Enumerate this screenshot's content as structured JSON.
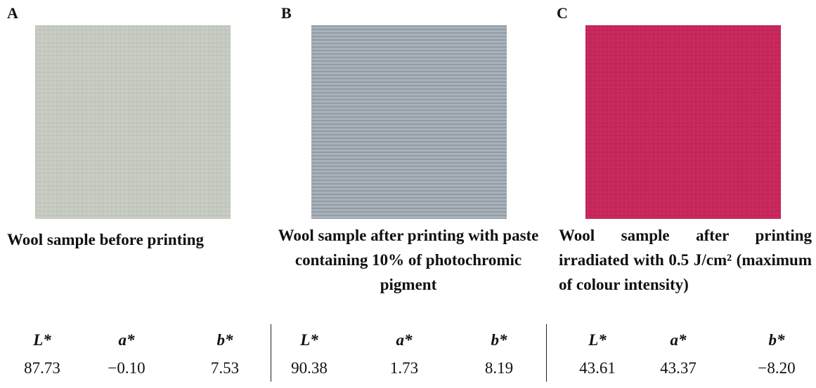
{
  "panels": [
    {
      "label": "A",
      "caption": "Wool sample before printing",
      "headers": [
        "L*",
        "a*",
        "b*"
      ],
      "values": [
        "87.73",
        "−0.10",
        "7.53"
      ]
    },
    {
      "label": "B",
      "caption": "Wool sample after printing with paste containing 10% of photochromic pigment",
      "headers": [
        "L*",
        "a*",
        "b*"
      ],
      "values": [
        "90.38",
        "1.73",
        "8.19"
      ]
    },
    {
      "label": "C",
      "caption": "Wool sample after printing irradiated with 0.5 J/cm² (maximum of colour intensity)",
      "headers": [
        "L*",
        "a*",
        "b*"
      ],
      "values": [
        "43.61",
        "43.37",
        "−8.20"
      ]
    }
  ]
}
